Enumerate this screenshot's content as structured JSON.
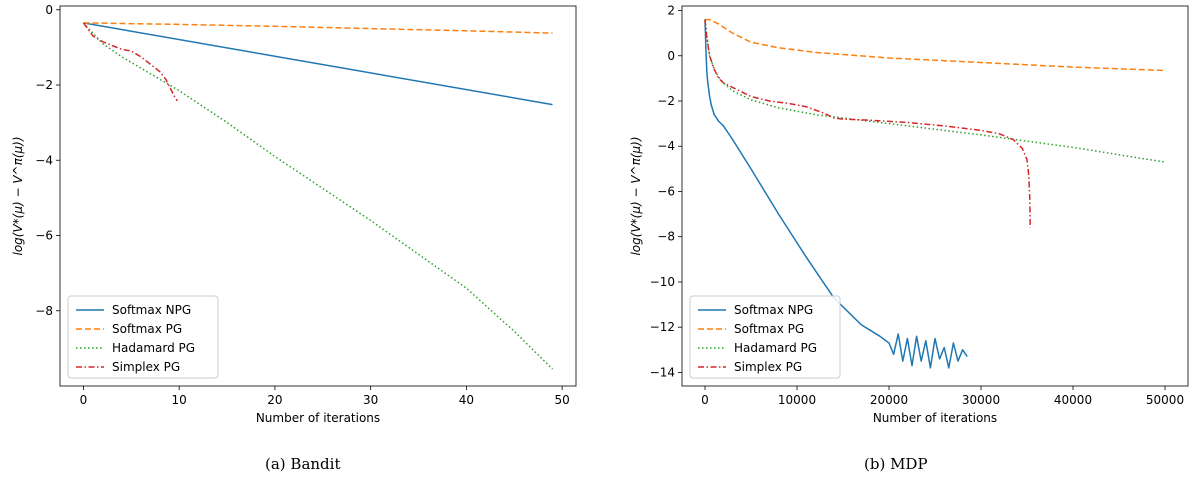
{
  "chart_data": [
    {
      "type": "line",
      "caption": "(a) Bandit",
      "xlabel": "Number of iterations",
      "ylabel": "log(V*(μ) − V^π(μ))",
      "xlim": [
        -2.45,
        51.45
      ],
      "ylim": [
        -10.0,
        0.1
      ],
      "xticks": [
        0,
        10,
        20,
        30,
        40,
        50
      ],
      "yticks": [
        0,
        -2,
        -4,
        -6,
        -8
      ],
      "grid": false,
      "legend_position": "lower-left",
      "series": [
        {
          "name": "Softmax NPG",
          "color": "#1f77b4",
          "dash": "solid",
          "x": [
            0,
            49
          ],
          "y": [
            -0.35,
            -2.52
          ]
        },
        {
          "name": "Softmax PG",
          "color": "#ff7f0e",
          "dash": "dashed",
          "x": [
            0,
            10,
            20,
            30,
            40,
            49
          ],
          "y": [
            -0.35,
            -0.39,
            -0.44,
            -0.5,
            -0.56,
            -0.62
          ]
        },
        {
          "name": "Hadamard PG",
          "color": "#2ca02c",
          "dash": "dotted",
          "x": [
            0,
            2,
            4,
            6,
            8,
            10,
            15,
            20,
            25,
            30,
            35,
            40,
            45,
            49
          ],
          "y": [
            -0.35,
            -0.9,
            -1.25,
            -1.55,
            -1.85,
            -2.15,
            -3.0,
            -3.9,
            -4.75,
            -5.6,
            -6.5,
            -7.4,
            -8.55,
            -9.55
          ]
        },
        {
          "name": "Simplex PG",
          "color": "#d62728",
          "dash": "dashdot",
          "x": [
            0,
            1,
            2,
            3,
            4,
            5,
            6,
            7,
            8,
            8.6,
            9,
            9.5,
            9.8
          ],
          "y": [
            -0.35,
            -0.7,
            -0.85,
            -0.95,
            -1.05,
            -1.1,
            -1.25,
            -1.45,
            -1.65,
            -1.85,
            -2.05,
            -2.3,
            -2.42
          ]
        }
      ]
    },
    {
      "type": "line",
      "caption": "(b) MDP",
      "xlabel": "Number of iterations",
      "ylabel": "log(V*(μ) − V^π(μ))",
      "xlim": [
        -2500,
        52500
      ],
      "ylim": [
        -14.6,
        2.2
      ],
      "xticks": [
        0,
        10000,
        20000,
        30000,
        40000,
        50000
      ],
      "yticks": [
        2,
        0,
        -2,
        -4,
        -6,
        -8,
        -10,
        -12,
        -14
      ],
      "grid": false,
      "legend_position": "lower-left",
      "series": [
        {
          "name": "Softmax NPG",
          "color": "#1f77b4",
          "dash": "solid",
          "x": [
            0,
            100,
            200,
            300,
            500,
            700,
            1000,
            1500,
            2000,
            3000,
            5000,
            8000,
            11000,
            14000,
            17000,
            19000,
            20000,
            20500,
            21000,
            21500,
            22000,
            22500,
            23000,
            23500,
            24000,
            24500,
            25000,
            25500,
            26000,
            26500,
            27000,
            27500,
            28000,
            28500
          ],
          "y": [
            1.6,
            0.3,
            -0.7,
            -1.2,
            -1.8,
            -2.2,
            -2.6,
            -2.9,
            -3.1,
            -3.7,
            -5.0,
            -7.0,
            -8.9,
            -10.7,
            -11.9,
            -12.4,
            -12.7,
            -13.2,
            -12.3,
            -13.5,
            -12.5,
            -13.7,
            -12.4,
            -13.5,
            -12.6,
            -13.8,
            -12.5,
            -13.4,
            -12.9,
            -13.8,
            -12.7,
            -13.5,
            -13.0,
            -13.3
          ]
        },
        {
          "name": "Softmax PG",
          "color": "#ff7f0e",
          "dash": "dashed",
          "x": [
            0,
            500,
            1500,
            3000,
            5000,
            8000,
            12000,
            20000,
            30000,
            40000,
            50000
          ],
          "y": [
            1.6,
            1.6,
            1.4,
            1.0,
            0.6,
            0.35,
            0.15,
            -0.1,
            -0.3,
            -0.5,
            -0.65
          ]
        },
        {
          "name": "Hadamard PG",
          "color": "#2ca02c",
          "dash": "dotted",
          "x": [
            0,
            200,
            500,
            1000,
            1500,
            2000,
            3000,
            5000,
            8000,
            12000,
            16000,
            20000,
            30000,
            40000,
            50000
          ],
          "y": [
            1.6,
            0.9,
            0.0,
            -0.6,
            -0.95,
            -1.2,
            -1.55,
            -1.95,
            -2.3,
            -2.6,
            -2.8,
            -3.0,
            -3.5,
            -4.05,
            -4.7
          ]
        },
        {
          "name": "Simplex PG",
          "color": "#d62728",
          "dash": "dashdot",
          "x": [
            0,
            200,
            500,
            1000,
            1500,
            2000,
            3000,
            5000,
            7000,
            9000,
            11000,
            13000,
            14000,
            15000,
            18000,
            22000,
            26000,
            30000,
            32000,
            33500,
            34500,
            35000,
            35200,
            35300,
            35350
          ],
          "y": [
            1.6,
            0.8,
            0.0,
            -0.6,
            -1.0,
            -1.2,
            -1.4,
            -1.8,
            -2.0,
            -2.1,
            -2.25,
            -2.55,
            -2.75,
            -2.8,
            -2.85,
            -2.95,
            -3.1,
            -3.3,
            -3.45,
            -3.7,
            -4.1,
            -4.6,
            -5.3,
            -6.3,
            -7.6
          ]
        }
      ]
    }
  ]
}
